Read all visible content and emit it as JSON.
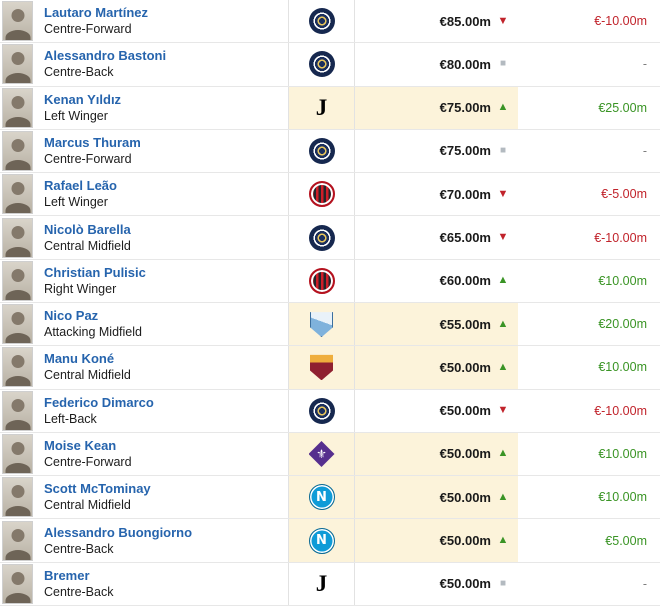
{
  "colors": {
    "link_blue": "#2664ad",
    "positive_green": "#3a9425",
    "negative_red": "#c1232b",
    "neutral_grey": "#b3bac0",
    "row_highlight": "#fcf3da"
  },
  "trend_glyphs": {
    "up": "▲",
    "down": "▼",
    "flat": "■"
  },
  "clubs": {
    "inter": {
      "label": "Inter Milan",
      "glyph": ""
    },
    "milan": {
      "label": "AC Milan",
      "glyph": ""
    },
    "juventus": {
      "label": "Juventus",
      "glyph": "J"
    },
    "como": {
      "label": "Como 1907",
      "glyph": ""
    },
    "roma": {
      "label": "AS Roma",
      "glyph": ""
    },
    "fiorentina": {
      "label": "Fiorentina",
      "glyph": "⚜"
    },
    "napoli": {
      "label": "SSC Napoli",
      "glyph": "N"
    }
  },
  "table": {
    "rows": [
      {
        "name": "Lautaro Martínez",
        "position": "Centre-Forward",
        "club": "inter",
        "value": "€85.00m",
        "trend": "down",
        "change": "€-10.00m",
        "highlight": false
      },
      {
        "name": "Alessandro Bastoni",
        "position": "Centre-Back",
        "club": "inter",
        "value": "€80.00m",
        "trend": "flat",
        "change": "-",
        "highlight": false
      },
      {
        "name": "Kenan Yıldız",
        "position": "Left Winger",
        "club": "juventus",
        "value": "€75.00m",
        "trend": "up",
        "change": "€25.00m",
        "highlight": true
      },
      {
        "name": "Marcus Thuram",
        "position": "Centre-Forward",
        "club": "inter",
        "value": "€75.00m",
        "trend": "flat",
        "change": "-",
        "highlight": false
      },
      {
        "name": "Rafael Leão",
        "position": "Left Winger",
        "club": "milan",
        "value": "€70.00m",
        "trend": "down",
        "change": "€-5.00m",
        "highlight": false
      },
      {
        "name": "Nicolò Barella",
        "position": "Central Midfield",
        "club": "inter",
        "value": "€65.00m",
        "trend": "down",
        "change": "€-10.00m",
        "highlight": false
      },
      {
        "name": "Christian Pulisic",
        "position": "Right Winger",
        "club": "milan",
        "value": "€60.00m",
        "trend": "up",
        "change": "€10.00m",
        "highlight": false
      },
      {
        "name": "Nico Paz",
        "position": "Attacking Midfield",
        "club": "como",
        "value": "€55.00m",
        "trend": "up",
        "change": "€20.00m",
        "highlight": true
      },
      {
        "name": "Manu Koné",
        "position": "Central Midfield",
        "club": "roma",
        "value": "€50.00m",
        "trend": "up",
        "change": "€10.00m",
        "highlight": true
      },
      {
        "name": "Federico Dimarco",
        "position": "Left-Back",
        "club": "inter",
        "value": "€50.00m",
        "trend": "down",
        "change": "€-10.00m",
        "highlight": false
      },
      {
        "name": "Moise Kean",
        "position": "Centre-Forward",
        "club": "fiorentina",
        "value": "€50.00m",
        "trend": "up",
        "change": "€10.00m",
        "highlight": true
      },
      {
        "name": "Scott McTominay",
        "position": "Central Midfield",
        "club": "napoli",
        "value": "€50.00m",
        "trend": "up",
        "change": "€10.00m",
        "highlight": true
      },
      {
        "name": "Alessandro Buongiorno",
        "position": "Centre-Back",
        "club": "napoli",
        "value": "€50.00m",
        "trend": "up",
        "change": "€5.00m",
        "highlight": true
      },
      {
        "name": "Bremer",
        "position": "Centre-Back",
        "club": "juventus",
        "value": "€50.00m",
        "trend": "flat",
        "change": "-",
        "highlight": false
      }
    ]
  }
}
